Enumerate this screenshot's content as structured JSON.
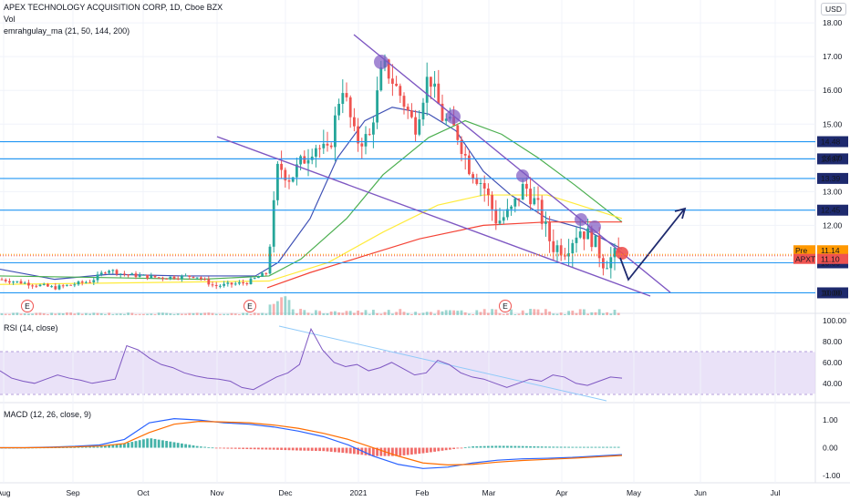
{
  "header": {
    "symbol_line": "APEX TECHNOLOGY ACQUISITION CORP, 1D, Cboe BZX",
    "vol_label": "Vol",
    "ma_label": "emrahgulay_ma (21, 50, 144, 200)",
    "rsi_label": "RSI (14, close)",
    "macd_label": "MACD (12, 26, close, 9)",
    "currency": "USD"
  },
  "colors": {
    "candle_up": "#26a69a",
    "candle_down": "#ef5350",
    "hline": "#2196f3",
    "trendline": "#7e57c2",
    "ma21": "#3f51b5",
    "ma50": "#4caf50",
    "ma144": "#ffeb3b",
    "ma200": "#f44336",
    "rsi_line": "#7e57c2",
    "rsi_band": "#e1d5f5",
    "macd_line": "#2962ff",
    "signal_line": "#ff6d00",
    "arrow": "#1e2a6e"
  },
  "chart_data": [
    {
      "type": "candlestick",
      "pane": "price",
      "y_ticks": [
        "18.00",
        "17.00",
        "16.00",
        "15.00",
        "14.00",
        "13.00",
        "12.00",
        "11.00",
        "10.00"
      ],
      "ylim": [
        9.5,
        18.3
      ],
      "x_ticks": [
        "Aug",
        "Sep",
        "Oct",
        "Nov",
        "Dec",
        "2021",
        "Feb",
        "Mar",
        "Apr",
        "May",
        "Jun",
        "Jul"
      ],
      "horizontal_levels": [
        {
          "value": 14.48,
          "label": "14.48"
        },
        {
          "value": 13.97,
          "label": "13.97"
        },
        {
          "value": 13.39,
          "label": "13.39"
        },
        {
          "value": 12.45,
          "label": "12.45"
        },
        {
          "value": 10.89,
          "label": "10.89"
        },
        {
          "value": 10.0,
          "label": "10.00"
        }
      ],
      "price_tags": [
        {
          "name": "Pre",
          "value": "11.14"
        },
        {
          "name": "APXT",
          "value": "11.10"
        }
      ],
      "earnings_markers": [
        "E",
        "E",
        "E"
      ]
    },
    {
      "type": "line",
      "pane": "rsi",
      "series": [
        {
          "name": "RSI",
          "values": [
            52,
            45,
            42,
            40,
            44,
            48,
            45,
            43,
            40,
            42,
            44,
            76,
            72,
            64,
            58,
            55,
            50,
            47,
            45,
            44,
            42,
            36,
            34,
            40,
            46,
            50,
            58,
            92,
            72,
            60,
            56,
            58,
            52,
            55,
            60,
            54,
            48,
            50,
            62,
            58,
            50,
            46,
            44,
            40,
            36,
            40,
            44,
            42,
            48,
            46,
            40,
            38,
            42,
            46,
            45
          ]
        }
      ],
      "y_ticks": [
        "100.00",
        "80.00",
        "60.00",
        "40.00"
      ],
      "ylim": [
        25,
        100
      ],
      "bands": [
        30,
        70
      ]
    },
    {
      "type": "bar+line",
      "pane": "macd",
      "series": [
        {
          "name": "MACD",
          "values": [
            0,
            0,
            0.02,
            0.05,
            0.1,
            0.3,
            0.9,
            1.05,
            1.0,
            0.9,
            0.85,
            0.75,
            0.6,
            0.4,
            0.1,
            -0.3,
            -0.6,
            -0.75,
            -0.7,
            -0.55,
            -0.45,
            -0.4,
            -0.38,
            -0.35,
            -0.3,
            -0.25
          ]
        },
        {
          "name": "Signal",
          "values": [
            0,
            0,
            0.01,
            0.03,
            0.06,
            0.15,
            0.55,
            0.85,
            0.95,
            0.93,
            0.9,
            0.82,
            0.7,
            0.52,
            0.3,
            0.0,
            -0.3,
            -0.55,
            -0.62,
            -0.6,
            -0.52,
            -0.46,
            -0.42,
            -0.38,
            -0.33,
            -0.28
          ]
        }
      ],
      "y_ticks": [
        "1.00",
        "0.00",
        "-1.00"
      ],
      "ylim": [
        -1.2,
        1.3
      ]
    }
  ]
}
